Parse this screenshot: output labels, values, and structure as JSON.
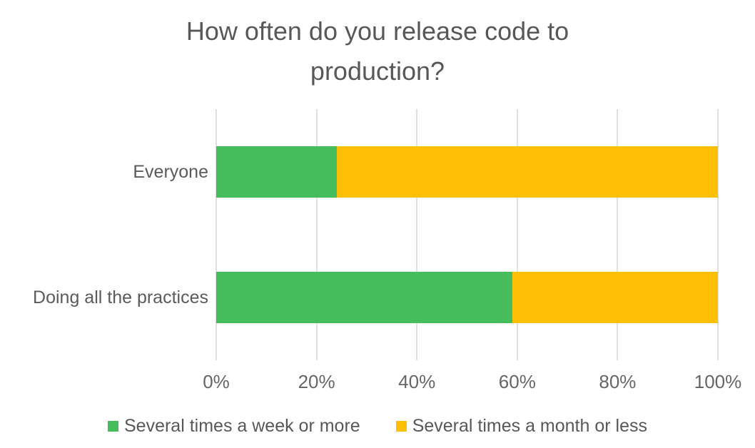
{
  "header": {
    "title": "How often do you release code to production?"
  },
  "chart_data": {
    "type": "bar",
    "orientation": "horizontal",
    "stacked": true,
    "title": "How often do you release code to production?",
    "categories": [
      "Everyone",
      "Doing all the practices"
    ],
    "series": [
      {
        "name": "Several times a week or more",
        "color": "#45bd5c",
        "values": [
          24,
          59
        ]
      },
      {
        "name": "Several times a month or less",
        "color": "#fec006",
        "values": [
          76,
          41
        ]
      }
    ],
    "x_ticks": [
      "0%",
      "20%",
      "40%",
      "60%",
      "80%",
      "100%"
    ],
    "xlim": [
      0,
      100
    ],
    "grid": true,
    "gridline_color": "#e0e0e0",
    "legend_position": "bottom"
  }
}
